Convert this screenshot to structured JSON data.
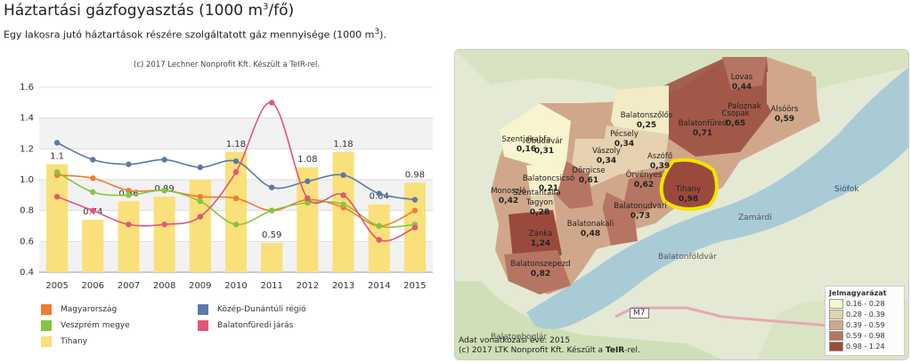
{
  "title": "Háztartási gázfogyasztás (1000 m",
  "title_sup": "3",
  "title_tail": "/fő)",
  "subtitle": "Egy lakosra jutó háztartások részére szolgáltatott gáz mennyisége (1000 m",
  "subtitle_sup": "3",
  "subtitle_tail": ").",
  "chart_credit": "(c) 2017 Lechner Nonprofit Kft. Készült a TeIR-rel.",
  "chart_data": {
    "type": "bar",
    "categories": [
      "2005",
      "2006",
      "2007",
      "2008",
      "2009",
      "2010",
      "2011",
      "2012",
      "2013",
      "2014",
      "2015"
    ],
    "ylim": [
      0.4,
      1.6
    ],
    "yticks": [
      "0.4",
      "0.6",
      "0.8",
      "1.0",
      "1.2",
      "1.4",
      "1.6"
    ],
    "bar_series": {
      "name": "Tihany",
      "color": "#f9e07a",
      "values": [
        1.1,
        0.74,
        0.86,
        0.89,
        1.0,
        1.18,
        0.59,
        1.08,
        1.18,
        0.84,
        0.98
      ],
      "labels": [
        "1.1",
        "0.74",
        "0.86",
        "0.89",
        "",
        "1.18",
        "0.59",
        "1.08",
        "1.18",
        "0.84",
        "0.98"
      ]
    },
    "series": [
      {
        "name": "Magyarország",
        "color": "#f07d2d",
        "values": [
          1.03,
          1.01,
          0.93,
          0.93,
          0.89,
          0.88,
          0.8,
          0.87,
          0.82,
          0.7,
          0.8
        ]
      },
      {
        "name": "Közép-Dunántúli régió",
        "color": "#5b7aa6",
        "values": [
          1.24,
          1.13,
          1.1,
          1.13,
          1.08,
          1.12,
          0.95,
          0.99,
          1.03,
          0.91,
          0.87
        ]
      },
      {
        "name": "Veszprém megye",
        "color": "#86c440",
        "values": [
          1.05,
          0.92,
          0.9,
          0.93,
          0.86,
          0.71,
          0.8,
          0.85,
          0.84,
          0.7,
          0.71
        ]
      },
      {
        "name": "Balatonfüredi járás",
        "color": "#e0567a",
        "values": [
          0.89,
          0.8,
          0.71,
          0.71,
          0.76,
          1.05,
          1.5,
          0.88,
          0.9,
          0.61,
          0.69
        ]
      }
    ],
    "legend": [
      "Magyarország",
      "Közép-Dunántúli régió",
      "Veszprém megye",
      "Balatonfüredi járás",
      "Tihany"
    ]
  },
  "map": {
    "places": [
      {
        "name": "Lovas",
        "value": "0,44"
      },
      {
        "name": "Paloznak",
        "value": ""
      },
      {
        "name": "Csopak",
        "value": "0,65"
      },
      {
        "name": "Alsóörs",
        "value": "0,59"
      },
      {
        "name": "Balatonszőlős",
        "value": "0,25"
      },
      {
        "name": "Balatonfüred",
        "value": "0,71"
      },
      {
        "name": "Pécsely",
        "value": "0,34"
      },
      {
        "name": "Szentjakabfa",
        "value": "0,16"
      },
      {
        "name": "Óbudavár",
        "value": "0,31"
      },
      {
        "name": "Vászoly",
        "value": "0,34"
      },
      {
        "name": "Aszófő",
        "value": "0,39"
      },
      {
        "name": "Balatoncsicsó",
        "value": "0,21"
      },
      {
        "name": "Dörgicse",
        "value": "0,61"
      },
      {
        "name": "Örvényes",
        "value": "0,62"
      },
      {
        "name": "Tihany",
        "value": "0,98"
      },
      {
        "name": "Monoszló",
        "value": "0,42"
      },
      {
        "name": "Szentantalfa",
        "value": ""
      },
      {
        "name": "Tagyon",
        "value": "0,28"
      },
      {
        "name": "Balatonudvari",
        "value": "0,73"
      },
      {
        "name": "Balatonakali",
        "value": "0,48"
      },
      {
        "name": "Zánka",
        "value": "1,24"
      },
      {
        "name": "Balatonszepezd",
        "value": "0,82"
      }
    ],
    "other_places": [
      "Siófok",
      "Zamárdi",
      "Balatonföldvár",
      "M7",
      "Balatonboglár"
    ],
    "footer_line1": "Adat vonatkozási éve: 2015",
    "footer_line2_pre": "(c) 2017 LTK Nonprofit Kft. Készült a ",
    "footer_line2_bold": "TeIR",
    "footer_line2_post": "-rel.",
    "legend_title": "Jelmagyarázat",
    "legend": [
      {
        "range": "0.16 - 0.28",
        "color": "#f7f4cf"
      },
      {
        "range": "0.28 - 0.39",
        "color": "#e6d2b0"
      },
      {
        "range": "0.39 - 0.59",
        "color": "#d0a78a"
      },
      {
        "range": "0.59 - 0.98",
        "color": "#b67563"
      },
      {
        "range": "0.98 - 1.24",
        "color": "#9a4a3c"
      }
    ]
  }
}
